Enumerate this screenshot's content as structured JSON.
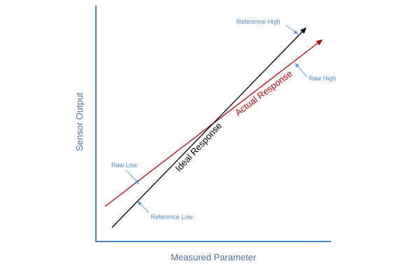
{
  "axes": {
    "x_title": "Measured Parameter",
    "y_title": "Sensor Output"
  },
  "lines": {
    "ideal": {
      "label": "Ideal Response",
      "color": "#000000"
    },
    "actual": {
      "label": "Actual Response",
      "color": "#c00000"
    }
  },
  "callouts": {
    "reference_high": "Reference High",
    "raw_high": "Raw High",
    "raw_low": "Raw Low",
    "reference_low": "Reference Low"
  },
  "colors": {
    "axis": "#4a86c8",
    "callout_arrow": "#5b9bd5",
    "callout_text": "#4a86c8",
    "axis_title": "#4a6fa5"
  }
}
